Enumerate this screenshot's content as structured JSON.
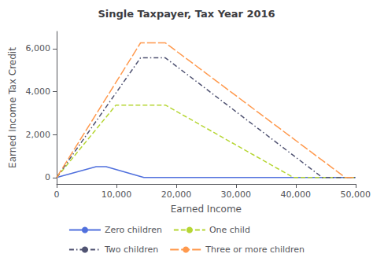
{
  "chart_data": {
    "type": "line",
    "title": "Single Taxpayer, Tax Year 2016",
    "xlabel": "Earned Income",
    "ylabel": "Earned Income Tax Credit",
    "xlim": [
      0,
      50000
    ],
    "ylim": [
      -300,
      6800
    ],
    "xticks": [
      0,
      {
        "value": 10000,
        "label": "10,000"
      },
      {
        "value": 20000,
        "label": "20,000"
      },
      {
        "value": 30000,
        "label": "30,000"
      },
      {
        "value": 40000,
        "label": "40,000"
      },
      {
        "value": 50000,
        "label": "50,000"
      }
    ],
    "yticks": [
      0,
      {
        "value": 2000,
        "label": "2,000"
      },
      {
        "value": 4000,
        "label": "4,000"
      },
      {
        "value": 6000,
        "label": "6,000"
      }
    ],
    "grid": false,
    "legend": "bottom",
    "series": [
      {
        "name": "Zero children",
        "line_style": "solid",
        "x": [
          0,
          6610,
          8270,
          14590,
          50000
        ],
        "values": [
          0,
          506,
          506,
          0,
          0
        ]
      },
      {
        "name": "One child",
        "line_style": "dashed",
        "x": [
          0,
          9920,
          18190,
          39617,
          50000
        ],
        "values": [
          0,
          3373,
          3373,
          0,
          0
        ]
      },
      {
        "name": "Two children",
        "line_style": "dashdot",
        "x": [
          0,
          14040,
          18190,
          44454,
          50000
        ],
        "values": [
          0,
          5572,
          5572,
          0,
          0
        ]
      },
      {
        "name": "Three or more children",
        "line_style": "longdash",
        "x": [
          0,
          14040,
          18190,
          48279,
          50000
        ],
        "values": [
          0,
          6269,
          6269,
          0,
          0
        ]
      }
    ]
  }
}
